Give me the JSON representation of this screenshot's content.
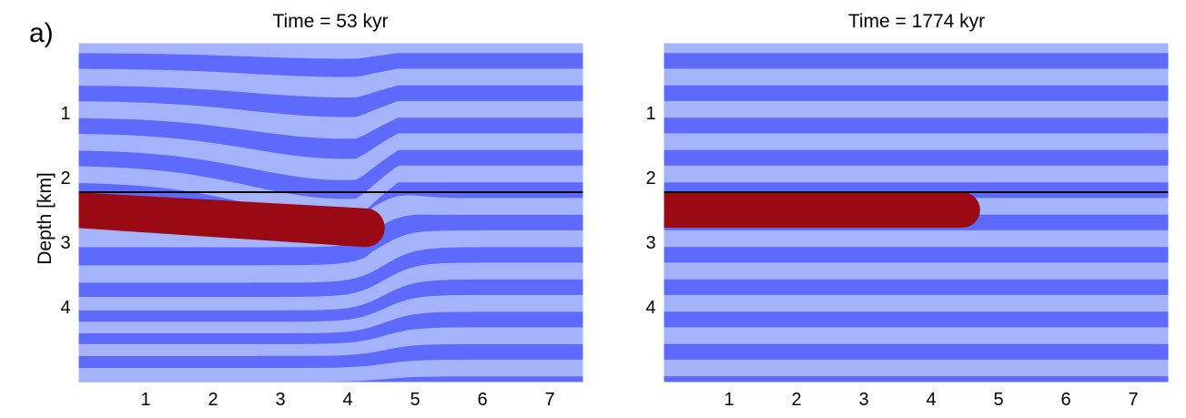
{
  "figure": {
    "panel_label": "a)"
  },
  "panels": [
    {
      "id": "left",
      "title": "Time = 53 kyr",
      "ylabel": "Depth [km]",
      "colors": {
        "stripe_light": "#a4b3fa",
        "stripe_dark": "#5e6afb",
        "intrusion": "#9a0a14",
        "line": "#000000"
      },
      "x_ticks": [
        "1",
        "2",
        "3",
        "4",
        "5",
        "6",
        "7"
      ],
      "y_ticks": [
        "1",
        "2",
        "3",
        "4"
      ],
      "xlim": [
        0,
        7.5
      ],
      "ylim": [
        0,
        5
      ],
      "reference_depth": 2.2,
      "intrusion": {
        "start_top": 2.2,
        "start_bottom": 2.75,
        "tip_x": 4.55,
        "tip_top": 2.45,
        "tip_bottom": 3.05
      },
      "deformed": true
    },
    {
      "id": "right",
      "title": "Time = 1774 kyr",
      "ylabel": "",
      "colors": {
        "stripe_light": "#a4b3fa",
        "stripe_dark": "#5e6afb",
        "intrusion": "#9a0a14",
        "line": "#000000"
      },
      "x_ticks": [
        "1",
        "2",
        "3",
        "4",
        "5",
        "6",
        "7"
      ],
      "y_ticks": [
        "1",
        "2",
        "3",
        "4"
      ],
      "xlim": [
        0,
        7.5
      ],
      "ylim": [
        0,
        5
      ],
      "reference_depth": 2.2,
      "intrusion": {
        "start_top": 2.2,
        "start_bottom": 2.75,
        "tip_x": 4.7,
        "tip_top": 2.2,
        "tip_bottom": 2.75
      },
      "deformed": false
    }
  ]
}
